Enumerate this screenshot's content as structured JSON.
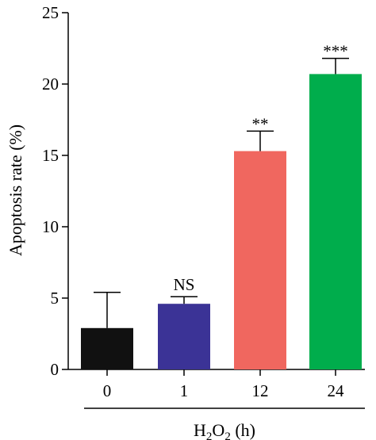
{
  "chart_data": {
    "type": "bar",
    "categories": [
      "0",
      "1",
      "12",
      "24"
    ],
    "values": [
      2.9,
      4.6,
      15.3,
      20.7
    ],
    "errors": [
      2.5,
      0.5,
      1.4,
      1.1
    ],
    "significance": [
      "",
      "NS",
      "**",
      "***"
    ],
    "colors": [
      "#111111",
      "#3b3396",
      "#f0675f",
      "#00ad4c"
    ],
    "ylabel": "Apoptosis rate (%)",
    "xlabel": {
      "h_base": "H",
      "h_sub": "2",
      "o_base": "O",
      "o_sub": "2",
      "unit": " (h)"
    },
    "ylim": [
      0,
      25
    ],
    "yticks": [
      0,
      5,
      10,
      15,
      20,
      25
    ],
    "grid": false
  }
}
